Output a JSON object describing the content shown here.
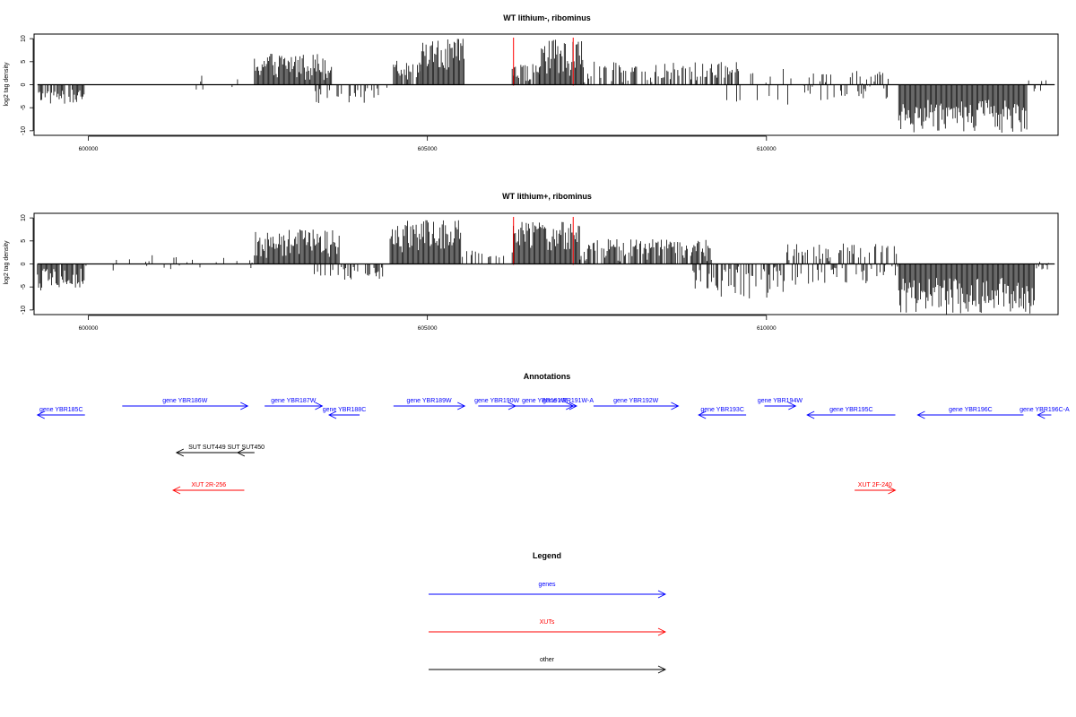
{
  "colors": {
    "genes": "#0000ff",
    "xuts": "#ff0000",
    "other": "#000000",
    "marker": "#ff0000",
    "bars": "#000000"
  },
  "chart_data": [
    {
      "type": "bar",
      "title": "WT lithium-, ribominus",
      "ylabel": "log2 tag density",
      "xlim": [
        599200,
        614300
      ],
      "ylim": [
        -11,
        11
      ],
      "x_ticks": [
        600000,
        605000,
        610000
      ],
      "x_tick_labels": [
        "600000",
        "605000",
        "610000"
      ],
      "y_ticks": [
        10,
        5,
        0,
        -5,
        -10
      ],
      "y_tick_labels": [
        "10",
        "5",
        "0",
        "-5",
        "-10"
      ],
      "markers_x": [
        606270,
        607150
      ],
      "regions": [
        {
          "start": 599250,
          "end": 599950,
          "min": -4.5,
          "max": -1.0,
          "density": 0.7
        },
        {
          "start": 601400,
          "end": 602200,
          "min": -3.0,
          "max": 3.0,
          "density": 0.08
        },
        {
          "start": 602450,
          "end": 603600,
          "min": 1.0,
          "max": 7.0,
          "density": 1.0
        },
        {
          "start": 603300,
          "end": 604500,
          "min": -4.0,
          "max": -0.5,
          "density": 0.25
        },
        {
          "start": 604500,
          "end": 604900,
          "min": 0.5,
          "max": 5.5,
          "density": 0.9
        },
        {
          "start": 604900,
          "end": 605550,
          "min": 2.0,
          "max": 10.0,
          "density": 1.0
        },
        {
          "start": 606250,
          "end": 606650,
          "min": 0.5,
          "max": 4.5,
          "density": 0.8
        },
        {
          "start": 606650,
          "end": 607300,
          "min": 1.5,
          "max": 10.0,
          "density": 1.0
        },
        {
          "start": 607300,
          "end": 609600,
          "min": 0.5,
          "max": 5.0,
          "density": 0.55
        },
        {
          "start": 609400,
          "end": 610400,
          "min": -5.5,
          "max": 3.5,
          "density": 0.25
        },
        {
          "start": 610500,
          "end": 611800,
          "min": -3.5,
          "max": 3.0,
          "density": 0.45
        },
        {
          "start": 611950,
          "end": 613850,
          "min": -10.5,
          "max": -3.0,
          "density": 1.0
        },
        {
          "start": 613850,
          "end": 614200,
          "min": -1.5,
          "max": 1.0,
          "density": 0.3
        }
      ]
    },
    {
      "type": "bar",
      "title": "WT lithium+, ribominus",
      "ylabel": "log2 tag density",
      "xlim": [
        599200,
        614300
      ],
      "ylim": [
        -11,
        11
      ],
      "x_ticks": [
        600000,
        605000,
        610000
      ],
      "x_tick_labels": [
        "600000",
        "605000",
        "610000"
      ],
      "y_ticks": [
        10,
        5,
        0,
        -5,
        -10
      ],
      "y_tick_labels": [
        "10",
        "5",
        "0",
        "-5",
        "-10"
      ],
      "markers_x": [
        606270,
        607150
      ],
      "regions": [
        {
          "start": 599250,
          "end": 599950,
          "min": -6.0,
          "max": -1.0,
          "density": 0.9
        },
        {
          "start": 599950,
          "end": 602450,
          "min": -1.5,
          "max": 2.0,
          "density": 0.12
        },
        {
          "start": 602450,
          "end": 603700,
          "min": 1.0,
          "max": 7.5,
          "density": 1.0
        },
        {
          "start": 603300,
          "end": 604400,
          "min": -3.5,
          "max": -0.5,
          "density": 0.35
        },
        {
          "start": 604450,
          "end": 605500,
          "min": 1.5,
          "max": 9.5,
          "density": 1.0
        },
        {
          "start": 605500,
          "end": 606200,
          "min": 0.5,
          "max": 3.0,
          "density": 0.35
        },
        {
          "start": 606250,
          "end": 607250,
          "min": 1.5,
          "max": 9.5,
          "density": 1.0
        },
        {
          "start": 607250,
          "end": 609200,
          "min": 0.5,
          "max": 5.5,
          "density": 0.85
        },
        {
          "start": 608900,
          "end": 610300,
          "min": -8.0,
          "max": -0.5,
          "density": 0.55
        },
        {
          "start": 610300,
          "end": 611950,
          "min": -4.5,
          "max": 4.5,
          "density": 0.7
        },
        {
          "start": 611950,
          "end": 613950,
          "min": -11.0,
          "max": -3.0,
          "density": 1.0
        },
        {
          "start": 613950,
          "end": 614200,
          "min": -1.5,
          "max": 0.8,
          "density": 0.4
        }
      ]
    }
  ],
  "annotations": {
    "title": "Annotations",
    "genes": [
      {
        "label": "gene YBR185C",
        "start": 599250,
        "end": 599950,
        "strand": "-",
        "row": 1
      },
      {
        "label": "gene YBR186W",
        "start": 600500,
        "end": 602350,
        "strand": "+",
        "row": 0
      },
      {
        "label": "gene YBR187W",
        "start": 602600,
        "end": 603450,
        "strand": "+",
        "row": 0
      },
      {
        "label": "gene YBR188C",
        "start": 603550,
        "end": 604000,
        "strand": "-",
        "row": 1
      },
      {
        "label": "gene YBR189W",
        "start": 604500,
        "end": 605550,
        "strand": "+",
        "row": 0
      },
      {
        "label": "gene YBR190W",
        "start": 605750,
        "end": 606300,
        "strand": "+",
        "row": 0
      },
      {
        "label": "gene YBR191W",
        "start": 606300,
        "end": 607150,
        "strand": "+",
        "row": 0
      },
      {
        "label": "gene YBR191W-A",
        "start": 606950,
        "end": 607200,
        "strand": "+",
        "row": 0
      },
      {
        "label": "gene YBR192W",
        "start": 607450,
        "end": 608700,
        "strand": "+",
        "row": 0
      },
      {
        "label": "gene YBR193C",
        "start": 609000,
        "end": 609700,
        "strand": "-",
        "row": 1
      },
      {
        "label": "gene YBR194W",
        "start": 609970,
        "end": 610430,
        "strand": "+",
        "row": 0
      },
      {
        "label": "gene YBR195C",
        "start": 610600,
        "end": 611900,
        "strand": "-",
        "row": 1
      },
      {
        "label": "gene YBR196C",
        "start": 612230,
        "end": 613790,
        "strand": "-",
        "row": 1
      },
      {
        "label": "gene YBR196C-A",
        "start": 614000,
        "end": 614200,
        "strand": "-",
        "row": 1
      }
    ],
    "other": [
      {
        "label": "SUT SUT449",
        "start": 601300,
        "end": 602200,
        "strand": "-",
        "row": 0
      },
      {
        "label": "SUT SUT450",
        "start": 602200,
        "end": 602450,
        "strand": "-",
        "row": 0
      }
    ],
    "xuts": [
      {
        "label": "XUT 2R-256",
        "start": 601250,
        "end": 602300,
        "strand": "-",
        "row": 0
      },
      {
        "label": "XUT 2F-240",
        "start": 611300,
        "end": 611900,
        "strand": "+",
        "row": 0
      }
    ]
  },
  "legend": {
    "title": "Legend",
    "items": [
      {
        "label": "genes",
        "color_key": "genes"
      },
      {
        "label": "XUTs",
        "color_key": "xuts"
      },
      {
        "label": "other",
        "color_key": "other"
      }
    ]
  }
}
